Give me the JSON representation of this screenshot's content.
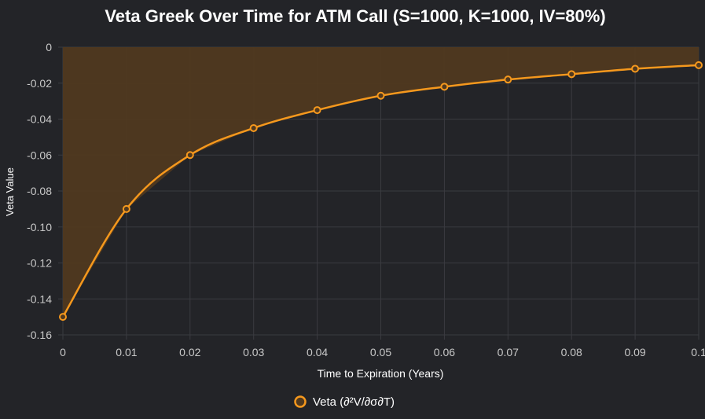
{
  "chart_data": {
    "type": "area",
    "title": "Veta Greek Over Time for ATM Call (S=1000, K=1000, IV=80%)",
    "xlabel": "Time to Expiration (Years)",
    "ylabel": "Veta Value",
    "xlim": [
      0,
      0.1
    ],
    "ylim": [
      -0.16,
      0
    ],
    "x_ticks": [
      "0",
      "0.01",
      "0.02",
      "0.03",
      "0.04",
      "0.05",
      "0.06",
      "0.07",
      "0.08",
      "0.09",
      "0.1"
    ],
    "y_ticks": [
      "0",
      "-0.02",
      "-0.04",
      "-0.06",
      "-0.08",
      "-0.10",
      "-0.12",
      "-0.14",
      "-0.16"
    ],
    "grid": true,
    "legend": "bottom",
    "series": [
      {
        "name": "Veta (∂²V/∂σ∂T)",
        "x": [
          0,
          0.01,
          0.02,
          0.03,
          0.04,
          0.05,
          0.06,
          0.07,
          0.08,
          0.09,
          0.1
        ],
        "values": [
          -0.15,
          -0.09,
          -0.06,
          -0.045,
          -0.035,
          -0.027,
          -0.022,
          -0.018,
          -0.015,
          -0.012,
          -0.01
        ]
      }
    ],
    "colors": {
      "background": "#232428",
      "grid": "#3a3b40",
      "line": "#f5981d",
      "fill": "#50391f",
      "text": "#c8c8c8",
      "title": "#ffffff"
    }
  }
}
